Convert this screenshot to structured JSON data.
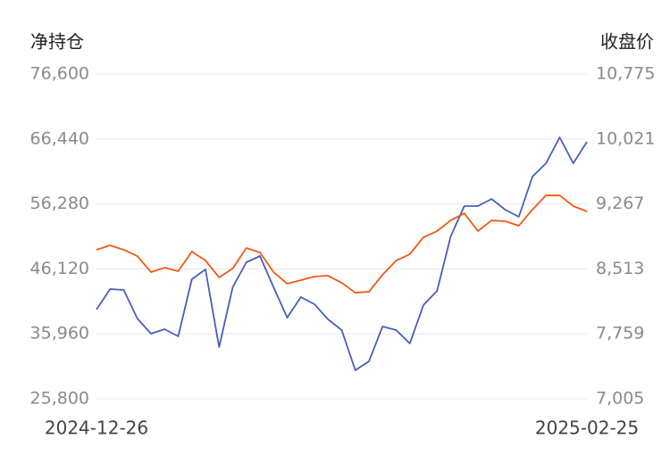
{
  "chart_data": {
    "type": "line",
    "ylabel": "净持仓",
    "y2label": "收盘价",
    "categories": [
      "2024-12-26",
      null,
      null,
      null,
      null,
      null,
      null,
      null,
      null,
      null,
      null,
      null,
      null,
      null,
      null,
      null,
      null,
      null,
      null,
      null,
      null,
      null,
      null,
      null,
      null,
      null,
      null,
      null,
      null,
      null,
      null,
      null,
      null,
      null,
      null,
      null,
      "2025-02-25"
    ],
    "series": [
      {
        "color": "#4560bd",
        "axis": "y",
        "values": [
          39756,
          42966,
          42826,
          38360,
          35988,
          36686,
          35569,
          44501,
          46036,
          33894,
          43245,
          47153,
          48130,
          43245,
          38500,
          41710,
          40593,
          38221,
          36546,
          30266,
          31662,
          37104,
          36546,
          34453,
          40454,
          42687,
          51200,
          55945,
          55945,
          57061,
          55387,
          54270,
          60550,
          62644,
          66691,
          62644,
          65993
        ]
      },
      {
        "color": "#f05a14",
        "axis": "y2",
        "values": [
          8735,
          8786,
          8735,
          8662,
          8476,
          8527,
          8486,
          8714,
          8610,
          8414,
          8517,
          8755,
          8704,
          8476,
          8341,
          8382,
          8424,
          8434,
          8351,
          8237,
          8248,
          8445,
          8610,
          8683,
          8880,
          8952,
          9076,
          9159,
          8952,
          9076,
          9066,
          9014,
          9201,
          9366,
          9366,
          9242,
          9180
        ]
      }
    ],
    "ylim": [
      25800,
      76600
    ],
    "yticks": [
      {
        "value": 25800,
        "label": "25,800"
      },
      {
        "value": 35960,
        "label": "35,960"
      },
      {
        "value": 46120,
        "label": "46,120"
      },
      {
        "value": 56280,
        "label": "56,280"
      },
      {
        "value": 66440,
        "label": "66,440"
      },
      {
        "value": 76600,
        "label": "76,600"
      }
    ],
    "y2lim": [
      7005,
      10775
    ],
    "y2ticks": [
      {
        "value": 7005,
        "label": "7,005"
      },
      {
        "value": 7759,
        "label": "7,759"
      },
      {
        "value": 8513,
        "label": "8,513"
      },
      {
        "value": 9267,
        "label": "9,267"
      },
      {
        "value": 10021,
        "label": "10,021"
      },
      {
        "value": 10775,
        "label": "10,775"
      }
    ],
    "grid": true
  }
}
